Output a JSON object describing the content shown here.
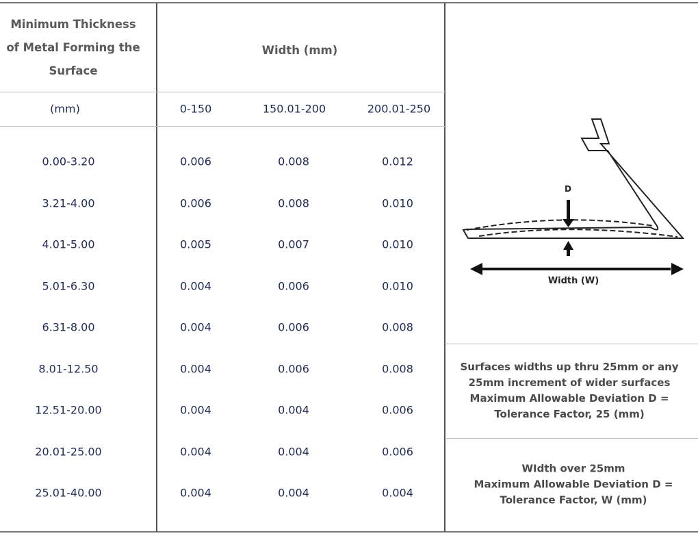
{
  "header": {
    "thickness_label": [
      "Minimum Thickness",
      "of  Metal Forming the",
      "Surface"
    ],
    "width_label": "Width (mm)",
    "unit_label": "(mm)",
    "width_ranges": [
      "0-150",
      "150.01-200",
      "200.01-250"
    ]
  },
  "rows": [
    {
      "thickness": "0.00-3.20",
      "values": [
        "0.006",
        "0.008",
        "0.012"
      ]
    },
    {
      "thickness": "3.21-4.00",
      "values": [
        "0.006",
        "0.008",
        "0.010"
      ]
    },
    {
      "thickness": "4.01-5.00",
      "values": [
        "0.005",
        "0.007",
        "0.010"
      ]
    },
    {
      "thickness": "5.01-6.30",
      "values": [
        "0.004",
        "0.006",
        "0.010"
      ]
    },
    {
      "thickness": "6.31-8.00",
      "values": [
        "0.004",
        "0.006",
        "0.008"
      ]
    },
    {
      "thickness": "8.01-12.50",
      "values": [
        "0.004",
        "0.006",
        "0.008"
      ]
    },
    {
      "thickness": "12.51-20.00",
      "values": [
        "0.004",
        "0.004",
        "0.006"
      ]
    },
    {
      "thickness": "20.01-25.00",
      "values": [
        "0.004",
        "0.004",
        "0.006"
      ]
    },
    {
      "thickness": "25.01-40.00",
      "values": [
        "0.004",
        "0.004",
        "0.004"
      ]
    }
  ],
  "diagram": {
    "d_label": "D",
    "width_label": "Width (W)"
  },
  "notes": [
    [
      "Surfaces widths up thru 25mm or any",
      "25mm increment of wider surfaces",
      "Maximum Allowable Deviation D =",
      "Tolerance Factor, 25 (mm)"
    ],
    [
      "WIdth over  25mm",
      "Maximum Allowable Deviation D =",
      "Tolerance Factor, W (mm)"
    ]
  ]
}
